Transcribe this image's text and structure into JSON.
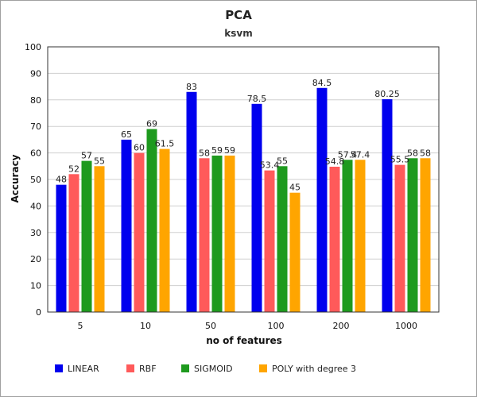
{
  "chart_data": {
    "type": "bar",
    "title": "PCA",
    "subtitle": "ksvm",
    "xlabel": "no of features",
    "ylabel": "Accuracy",
    "ylim": [
      0,
      100
    ],
    "yticks": [
      0,
      10,
      20,
      30,
      40,
      50,
      60,
      70,
      80,
      90,
      100
    ],
    "grid": true,
    "legend_position": "bottom",
    "categories": [
      "5",
      "10",
      "50",
      "100",
      "200",
      "1000"
    ],
    "series": [
      {
        "name": "LINEAR",
        "color": "#0000ee",
        "values": [
          48,
          65,
          83,
          78.5,
          84.5,
          80.25
        ],
        "labels": [
          "48",
          "65",
          "83",
          "78.5",
          "84.5",
          "80.25"
        ]
      },
      {
        "name": "RBF",
        "color": "#ff5a5a",
        "values": [
          52,
          60,
          58,
          53.4,
          54.8,
          55.5
        ],
        "labels": [
          "52",
          "60",
          "58",
          "53.4",
          "54.8",
          "55.5"
        ]
      },
      {
        "name": "SIGMOID",
        "color": "#1e9a1e",
        "values": [
          57,
          69,
          59,
          55,
          57.4,
          58
        ],
        "labels": [
          "57",
          "69",
          "59",
          "55",
          "57.4",
          "58"
        ]
      },
      {
        "name": "POLY with degree 3",
        "color": "#ffa500",
        "values": [
          55,
          61.5,
          59,
          45,
          57.4,
          58
        ],
        "labels": [
          "55",
          "61.5",
          "59",
          "45",
          "57.4",
          "58"
        ]
      }
    ]
  }
}
